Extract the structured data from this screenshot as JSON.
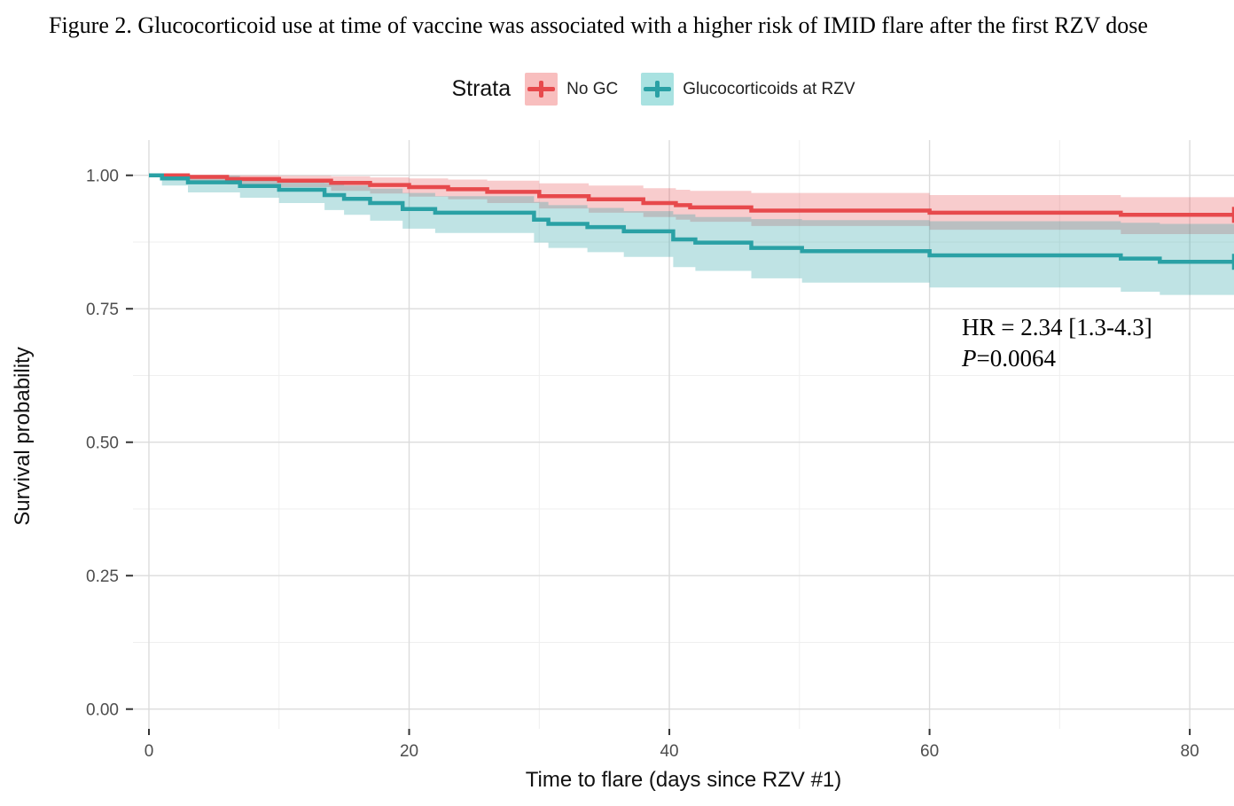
{
  "chart_data": {
    "type": "line",
    "subtype": "kaplan_meier_step_with_ci",
    "title": "Figure 2. Glucocorticoid use at time of vaccine was associated with a higher risk of IMID flare after the first RZV dose",
    "legend_title": "Strata",
    "legend_position": "top",
    "xlabel": "Time to flare (days since RZV #1)",
    "ylabel": "Survival probability",
    "x_ticks": [
      0,
      20,
      40,
      60,
      80
    ],
    "x_minor_gridlines": [
      10,
      30,
      50,
      70
    ],
    "y_ticks": [
      {
        "value": 1.0,
        "label": "1.00"
      },
      {
        "value": 0.75,
        "label": "0.75"
      },
      {
        "value": 0.5,
        "label": "0.50"
      },
      {
        "value": 0.25,
        "label": "0.25"
      },
      {
        "value": 0.0,
        "label": "0.00"
      }
    ],
    "y_minor_gridlines": [
      0.125,
      0.375,
      0.625,
      0.875
    ],
    "xlim": [
      -1.226,
      83.4
    ],
    "ylim": [
      -0.037,
      1.066
    ],
    "grid": true,
    "annotation": {
      "hr": "HR = 2.34 [1.3-4.3]",
      "p_italic": "P",
      "p_value": "=0.0064"
    },
    "colors": {
      "major_gridline": "#DCDCDC",
      "minor_gridline": "#EFEFEF",
      "tick": "#333333",
      "tick_label": "#4D4D4D"
    },
    "series": [
      {
        "name": "No GC",
        "color": "#E7494C",
        "key_fill": "#F8BEBE",
        "ci_fill_opacity": 0.28,
        "end_day": 83.4,
        "steps": [
          [
            0,
            1.0
          ],
          [
            3,
            0.997
          ],
          [
            6,
            0.993
          ],
          [
            10,
            0.99
          ],
          [
            14,
            0.986
          ],
          [
            17,
            0.982
          ],
          [
            20,
            0.978
          ],
          [
            23,
            0.974
          ],
          [
            26,
            0.969
          ],
          [
            30,
            0.961
          ],
          [
            33.8,
            0.955
          ],
          [
            38,
            0.948
          ],
          [
            40.5,
            0.944
          ],
          [
            41.6,
            0.94
          ],
          [
            46.3,
            0.934
          ],
          [
            60,
            0.93
          ],
          [
            74.7,
            0.926
          ]
        ],
        "ci_upper": [
          [
            0,
            1.0
          ],
          [
            6,
            1.0
          ],
          [
            10,
            0.999
          ],
          [
            14,
            0.998
          ],
          [
            17,
            0.996
          ],
          [
            20,
            0.994
          ],
          [
            23,
            0.992
          ],
          [
            26,
            0.99
          ],
          [
            30,
            0.985
          ],
          [
            33.8,
            0.981
          ],
          [
            38,
            0.976
          ],
          [
            40.5,
            0.973
          ],
          [
            41.6,
            0.971
          ],
          [
            46.3,
            0.967
          ],
          [
            60,
            0.963
          ],
          [
            74.7,
            0.959
          ]
        ],
        "ci_lower": [
          [
            0,
            1.0
          ],
          [
            3,
            0.99
          ],
          [
            6,
            0.983
          ],
          [
            10,
            0.978
          ],
          [
            14,
            0.971
          ],
          [
            17,
            0.966
          ],
          [
            20,
            0.96
          ],
          [
            23,
            0.955
          ],
          [
            26,
            0.948
          ],
          [
            30,
            0.938
          ],
          [
            33.8,
            0.93
          ],
          [
            38,
            0.922
          ],
          [
            40.5,
            0.917
          ],
          [
            41.6,
            0.913
          ],
          [
            46.3,
            0.905
          ],
          [
            60,
            0.898
          ],
          [
            74.7,
            0.89
          ]
        ]
      },
      {
        "name": "Glucocorticoids at RZV",
        "color": "#2AA1A5",
        "key_fill": "#A9E2E1",
        "ci_fill_opacity": 0.3,
        "end_day": 83.4,
        "steps": [
          [
            0,
            1.0
          ],
          [
            1,
            0.994
          ],
          [
            3,
            0.987
          ],
          [
            7,
            0.98
          ],
          [
            10,
            0.973
          ],
          [
            13.5,
            0.963
          ],
          [
            15,
            0.956
          ],
          [
            17,
            0.948
          ],
          [
            19.5,
            0.937
          ],
          [
            22,
            0.93
          ],
          [
            29.6,
            0.917
          ],
          [
            30.7,
            0.909
          ],
          [
            33.7,
            0.903
          ],
          [
            36.5,
            0.895
          ],
          [
            40.3,
            0.88
          ],
          [
            42,
            0.874
          ],
          [
            46.3,
            0.864
          ],
          [
            50.2,
            0.858
          ],
          [
            60,
            0.85
          ],
          [
            74.7,
            0.844
          ],
          [
            77.7,
            0.838
          ]
        ],
        "ci_upper": [
          [
            0,
            1.0
          ],
          [
            1,
            1.0
          ],
          [
            3,
            0.999
          ],
          [
            7,
            0.995
          ],
          [
            10,
            0.991
          ],
          [
            13.5,
            0.986
          ],
          [
            15,
            0.981
          ],
          [
            17,
            0.975
          ],
          [
            19.5,
            0.967
          ],
          [
            22,
            0.961
          ],
          [
            29.6,
            0.95
          ],
          [
            30.7,
            0.944
          ],
          [
            33.7,
            0.939
          ],
          [
            36.5,
            0.933
          ],
          [
            40.3,
            0.927
          ],
          [
            42,
            0.922
          ],
          [
            46.3,
            0.918
          ],
          [
            50.2,
            0.916
          ],
          [
            60,
            0.914
          ],
          [
            74.7,
            0.911
          ],
          [
            77.7,
            0.909
          ]
        ],
        "ci_lower": [
          [
            0,
            1.0
          ],
          [
            1,
            0.981
          ],
          [
            3,
            0.968
          ],
          [
            7,
            0.958
          ],
          [
            10,
            0.948
          ],
          [
            13.5,
            0.935
          ],
          [
            15,
            0.926
          ],
          [
            17,
            0.915
          ],
          [
            19.5,
            0.9
          ],
          [
            22,
            0.892
          ],
          [
            29.6,
            0.874
          ],
          [
            30.7,
            0.864
          ],
          [
            33.7,
            0.856
          ],
          [
            36.5,
            0.847
          ],
          [
            40.3,
            0.828
          ],
          [
            42,
            0.821
          ],
          [
            46.3,
            0.807
          ],
          [
            50.2,
            0.799
          ],
          [
            60,
            0.79
          ],
          [
            74.7,
            0.782
          ],
          [
            77.7,
            0.776
          ]
        ]
      }
    ]
  }
}
